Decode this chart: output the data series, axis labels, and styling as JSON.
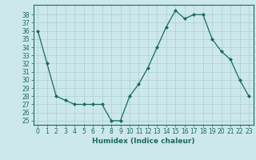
{
  "x": [
    0,
    1,
    2,
    3,
    4,
    5,
    6,
    7,
    8,
    9,
    10,
    11,
    12,
    13,
    14,
    15,
    16,
    17,
    18,
    19,
    20,
    21,
    22,
    23
  ],
  "y": [
    36,
    32,
    28,
    27.5,
    27,
    27,
    27,
    27,
    25,
    25,
    28,
    29.5,
    31.5,
    34,
    36.5,
    38.5,
    37.5,
    38,
    38,
    35,
    33.5,
    32.5,
    30,
    28
  ],
  "line_color": "#1a6b5a",
  "marker": "D",
  "marker_size": 2,
  "bg_color": "#cce8ec",
  "grid_color": "#aacfd4",
  "xlabel": "Humidex (Indice chaleur)",
  "xlim": [
    -0.5,
    23.5
  ],
  "ylim": [
    24.5,
    39.2
  ],
  "xticks": [
    0,
    1,
    2,
    3,
    4,
    5,
    6,
    7,
    8,
    9,
    10,
    11,
    12,
    13,
    14,
    15,
    16,
    17,
    18,
    19,
    20,
    21,
    22,
    23
  ],
  "yticks": [
    25,
    26,
    27,
    28,
    29,
    30,
    31,
    32,
    33,
    34,
    35,
    36,
    37,
    38
  ],
  "tick_label_fontsize": 5.5,
  "xlabel_fontsize": 6.5
}
